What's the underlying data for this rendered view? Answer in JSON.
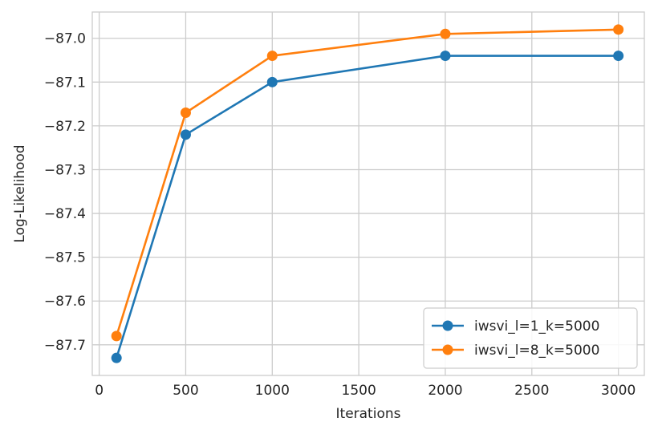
{
  "chart_data": {
    "type": "line",
    "xlabel": "Iterations",
    "ylabel": "Log-Likelihood",
    "xlim": [
      -40,
      3150
    ],
    "ylim": [
      -87.77,
      -86.94
    ],
    "xticks": [
      0,
      500,
      1000,
      1500,
      2000,
      2500,
      3000
    ],
    "xtick_labels": [
      "0",
      "500",
      "1000",
      "1500",
      "2000",
      "2500",
      "3000"
    ],
    "yticks": [
      -87.7,
      -87.6,
      -87.5,
      -87.4,
      -87.3,
      -87.2,
      -87.1,
      -87.0
    ],
    "ytick_labels": [
      "−87.7",
      "−87.6",
      "−87.5",
      "−87.4",
      "−87.3",
      "−87.2",
      "−87.1",
      "−87.0"
    ],
    "grid": true,
    "legend_position": "bottom-right",
    "x": [
      100,
      500,
      1000,
      2000,
      3000
    ],
    "series": [
      {
        "name": "iwsvi_l=1_k=5000",
        "color": "#1f77b4",
        "values": [
          -87.73,
          -87.22,
          -87.1,
          -87.04,
          -87.04
        ]
      },
      {
        "name": "iwsvi_l=8_k=5000",
        "color": "#ff7f0e",
        "values": [
          -87.68,
          -87.17,
          -87.04,
          -86.99,
          -86.98
        ]
      }
    ]
  }
}
